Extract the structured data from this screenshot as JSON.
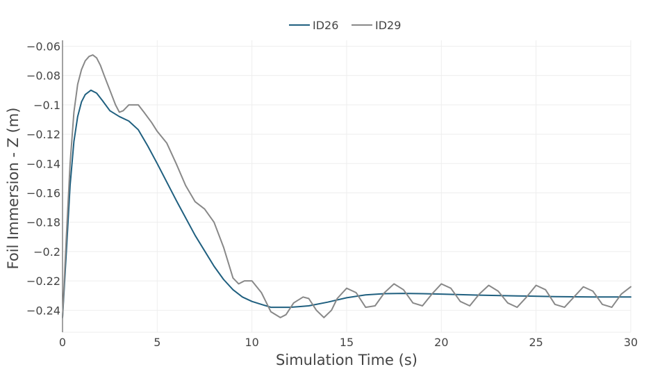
{
  "chart_data": {
    "type": "line",
    "title": "",
    "xlabel": "Simulation Time (s)",
    "ylabel": "Foil Immersion - Z (m)",
    "xlim": [
      0,
      30
    ],
    "ylim": [
      -0.255,
      -0.056
    ],
    "xticks": [
      0,
      5,
      10,
      15,
      20,
      25,
      30
    ],
    "xtick_labels": [
      "0",
      "5",
      "10",
      "15",
      "20",
      "25",
      "30"
    ],
    "yticks": [
      -0.24,
      -0.22,
      -0.2,
      -0.18,
      -0.16,
      -0.14,
      -0.12,
      -0.1,
      -0.08,
      -0.06
    ],
    "ytick_labels": [
      "−0.24",
      "−0.22",
      "−0.2",
      "−0.18",
      "−0.16",
      "−0.14",
      "−0.12",
      "−0.1",
      "−0.08",
      "−0.06"
    ],
    "grid": true,
    "legend": {
      "placement": "top-center",
      "orientation": "horizontal"
    },
    "series": [
      {
        "name": "ID26",
        "color": "#1f5f7f",
        "x": [
          0,
          0.2,
          0.4,
          0.6,
          0.8,
          1.0,
          1.2,
          1.5,
          1.8,
          2.1,
          2.5,
          3.0,
          3.5,
          4.0,
          4.5,
          5.0,
          6.0,
          7.0,
          8.0,
          8.5,
          9.0,
          9.5,
          10.0,
          10.5,
          11.0,
          11.5,
          12.0,
          12.5,
          13.0,
          14.0,
          15.0,
          16.0,
          17.0,
          18.0,
          19.0,
          20.0,
          22.0,
          24.0,
          26.0,
          28.0,
          30.0
        ],
        "y": [
          -0.245,
          -0.2,
          -0.155,
          -0.125,
          -0.108,
          -0.098,
          -0.093,
          -0.09,
          -0.092,
          -0.097,
          -0.104,
          -0.108,
          -0.111,
          -0.117,
          -0.128,
          -0.14,
          -0.165,
          -0.189,
          -0.21,
          -0.219,
          -0.226,
          -0.231,
          -0.234,
          -0.236,
          -0.238,
          -0.238,
          -0.238,
          -0.2375,
          -0.237,
          -0.2345,
          -0.2315,
          -0.2295,
          -0.2287,
          -0.2285,
          -0.2287,
          -0.229,
          -0.2297,
          -0.2302,
          -0.2307,
          -0.231,
          -0.231
        ]
      },
      {
        "name": "ID29",
        "color": "#888888",
        "x": [
          0,
          0.2,
          0.4,
          0.6,
          0.8,
          1.0,
          1.2,
          1.4,
          1.6,
          1.8,
          2.0,
          2.2,
          2.5,
          2.8,
          3.0,
          3.2,
          3.5,
          3.8,
          4.0,
          4.3,
          4.7,
          5.0,
          5.5,
          6.0,
          6.5,
          7.0,
          7.5,
          8.0,
          8.5,
          9.0,
          9.3,
          9.6,
          10.0,
          10.5,
          11.0,
          11.5,
          11.8,
          12.2,
          12.7,
          13.0,
          13.4,
          13.8,
          14.2,
          14.5,
          15.0,
          15.5,
          16.0,
          16.5,
          17.0,
          17.5,
          18.0,
          18.5,
          19.0,
          19.5,
          20.0,
          20.5,
          21.0,
          21.5,
          22.0,
          22.5,
          23.0,
          23.5,
          24.0,
          24.5,
          25.0,
          25.5,
          26.0,
          26.5,
          27.0,
          27.5,
          28.0,
          28.5,
          29.0,
          29.5,
          30.0
        ],
        "y": [
          -0.245,
          -0.19,
          -0.14,
          -0.105,
          -0.086,
          -0.076,
          -0.07,
          -0.067,
          -0.066,
          -0.068,
          -0.073,
          -0.08,
          -0.09,
          -0.1,
          -0.105,
          -0.104,
          -0.1,
          -0.1,
          -0.1,
          -0.105,
          -0.112,
          -0.118,
          -0.126,
          -0.14,
          -0.155,
          -0.166,
          -0.171,
          -0.18,
          -0.197,
          -0.218,
          -0.222,
          -0.22,
          -0.22,
          -0.228,
          -0.241,
          -0.245,
          -0.243,
          -0.235,
          -0.231,
          -0.232,
          -0.24,
          -0.245,
          -0.24,
          -0.232,
          -0.225,
          -0.228,
          -0.238,
          -0.237,
          -0.228,
          -0.222,
          -0.226,
          -0.235,
          -0.237,
          -0.229,
          -0.222,
          -0.225,
          -0.234,
          -0.237,
          -0.229,
          -0.223,
          -0.227,
          -0.235,
          -0.238,
          -0.231,
          -0.223,
          -0.226,
          -0.236,
          -0.238,
          -0.231,
          -0.224,
          -0.227,
          -0.236,
          -0.238,
          -0.229,
          -0.224
        ]
      }
    ]
  }
}
